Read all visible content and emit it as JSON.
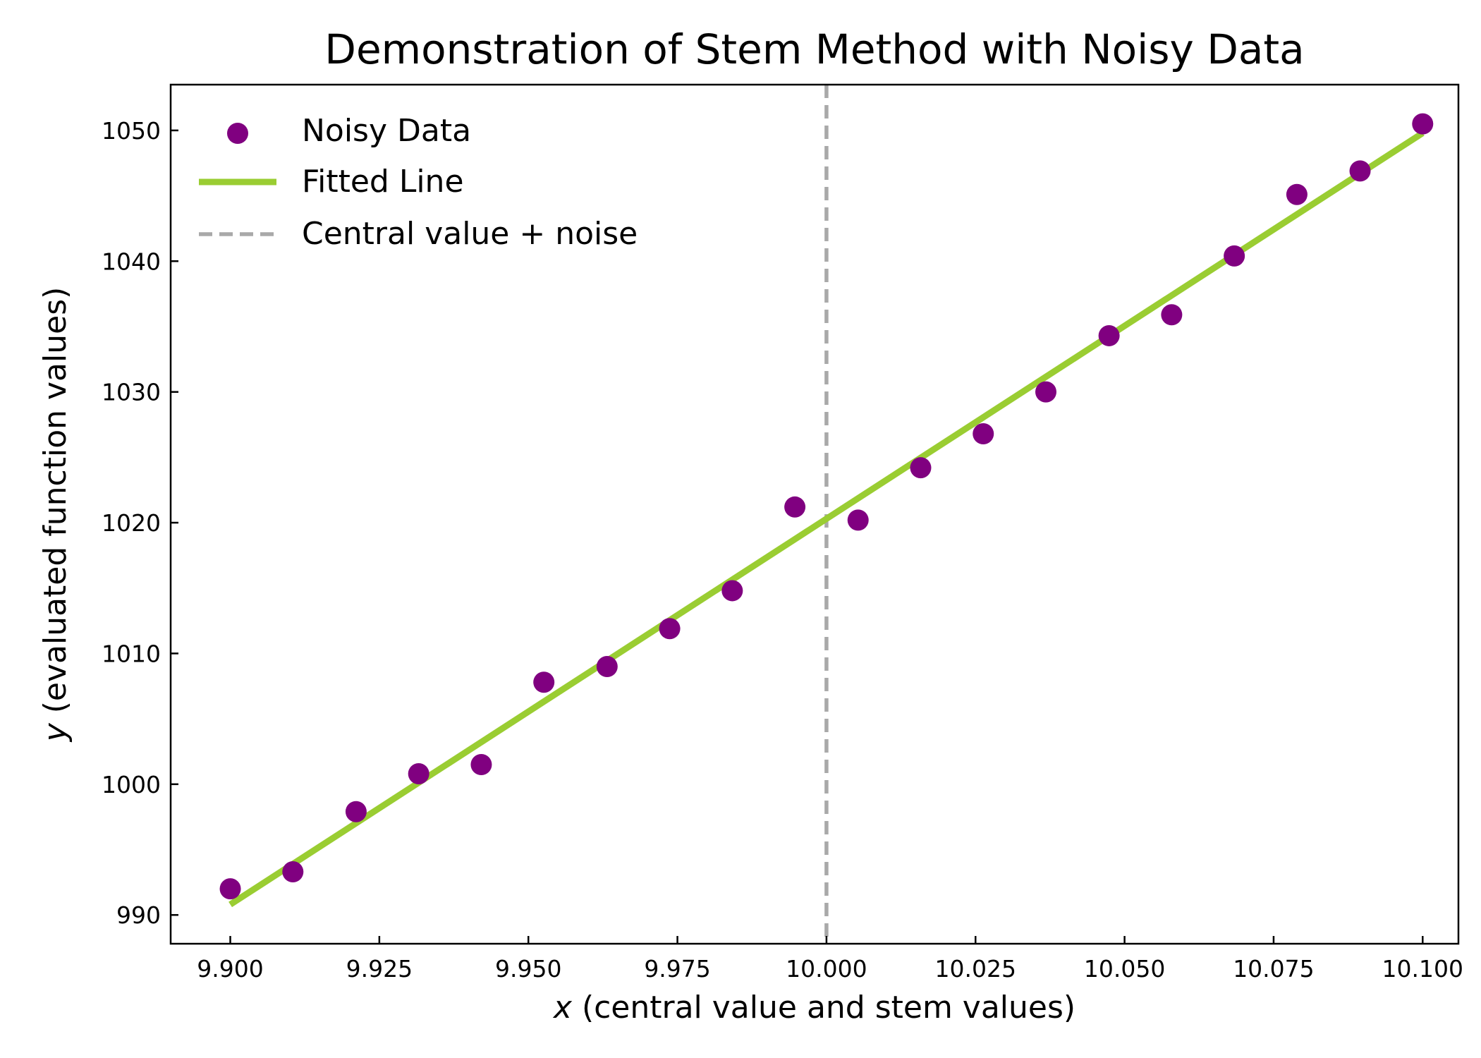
{
  "chart_data": {
    "type": "scatter",
    "title": "Demonstration of Stem Method with Noisy Data",
    "xlabel_var": "x",
    "xlabel_rest": " (central value and stem values)",
    "ylabel_var": "y",
    "ylabel_rest": " (evaluated function values)",
    "xlim": [
      9.89,
      10.106
    ],
    "ylim": [
      987.8,
      1053.5
    ],
    "x_ticks": [
      9.9,
      9.925,
      9.95,
      9.975,
      10.0,
      10.025,
      10.05,
      10.075,
      10.1
    ],
    "x_tick_labels": [
      "9.900",
      "9.925",
      "9.950",
      "9.975",
      "10.000",
      "10.025",
      "10.050",
      "10.075",
      "10.100"
    ],
    "y_ticks": [
      990,
      1000,
      1010,
      1020,
      1030,
      1040,
      1050
    ],
    "y_tick_labels": [
      "990",
      "1000",
      "1010",
      "1020",
      "1030",
      "1040",
      "1050"
    ],
    "grid": false,
    "legend_position": "upper-left",
    "series": [
      {
        "name": "Noisy Data",
        "kind": "scatter",
        "color": "#800080",
        "x": [
          9.9,
          9.9105,
          9.9211,
          9.9316,
          9.9421,
          9.9526,
          9.9632,
          9.9737,
          9.9842,
          9.9947,
          10.0053,
          10.0158,
          10.0263,
          10.0368,
          10.0474,
          10.0579,
          10.0684,
          10.0789,
          10.0895,
          10.1
        ],
        "y": [
          992.0,
          993.3,
          997.9,
          1000.8,
          1001.5,
          1007.8,
          1009.0,
          1011.9,
          1014.8,
          1021.2,
          1020.2,
          1024.2,
          1026.8,
          1030.0,
          1034.3,
          1035.9,
          1040.4,
          1045.1,
          1046.9,
          1050.5
        ]
      },
      {
        "name": "Fitted Line",
        "kind": "line",
        "color": "#9acd32",
        "x": [
          9.9,
          10.1
        ],
        "y": [
          990.8,
          1049.8
        ]
      },
      {
        "name": "Central value + noise",
        "kind": "vline",
        "color": "#a9a9a9",
        "x": 10.0
      }
    ]
  }
}
